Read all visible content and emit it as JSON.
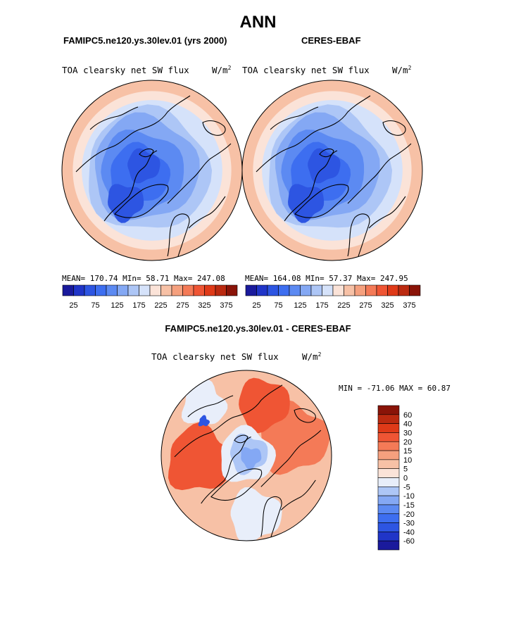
{
  "page_title": "ANN",
  "panels": [
    {
      "header": "FAMIPC5.ne120.ys.30lev.01 (yrs 2000)",
      "variable": "TOA clearsky net SW flux",
      "units_base": "W/m",
      "units_exp": "2",
      "stats": "MEAN= 170.74   MIn=  58.71   Max= 247.08"
    },
    {
      "header": "CERES-EBAF",
      "variable": "TOA clearsky net SW flux",
      "units_base": "W/m",
      "units_exp": "2",
      "stats": "MEAN= 164.08   MIn=  57.37   Max= 247.95"
    }
  ],
  "diff_panel": {
    "header": "FAMIPC5.ne120.ys.30lev.01 - CERES-EBAF",
    "variable": "TOA clearsky net SW flux",
    "units_base": "W/m",
    "units_exp": "2",
    "minmax": "MIN = -71.06 MAX =  60.87"
  },
  "chart_data": [
    {
      "type": "heatmap",
      "projection": "north polar stereographic",
      "title": "FAMIPC5.ne120.ys.30lev.01 (yrs 2000)",
      "variable": "TOA clearsky net SW flux",
      "units": "W/m2",
      "mean": 170.74,
      "min": 58.71,
      "max": 247.08,
      "colorbar_ticks": [
        "25",
        "75",
        "125",
        "175",
        "225",
        "275",
        "325",
        "375"
      ],
      "colorbar_colors": [
        "#1a1a9c",
        "#2035c8",
        "#2d55e2",
        "#3d6ef0",
        "#5c8af2",
        "#84a8f4",
        "#adc6f6",
        "#d5e2fa",
        "#fbe3d8",
        "#f7c1a6",
        "#f5a07e",
        "#f47a57",
        "#ef5534",
        "#df3a18",
        "#bb2a10",
        "#8a1408"
      ]
    },
    {
      "type": "heatmap",
      "projection": "north polar stereographic",
      "title": "CERES-EBAF",
      "variable": "TOA clearsky net SW flux",
      "units": "W/m2",
      "mean": 164.08,
      "min": 57.37,
      "max": 247.95,
      "colorbar_ticks": [
        "25",
        "75",
        "125",
        "175",
        "225",
        "275",
        "325",
        "375"
      ],
      "colorbar_colors": [
        "#1a1a9c",
        "#2035c8",
        "#2d55e2",
        "#3d6ef0",
        "#5c8af2",
        "#84a8f4",
        "#adc6f6",
        "#d5e2fa",
        "#fbe3d8",
        "#f7c1a6",
        "#f5a07e",
        "#f47a57",
        "#ef5534",
        "#df3a18",
        "#bb2a10",
        "#8a1408"
      ]
    },
    {
      "type": "heatmap",
      "projection": "north polar stereographic",
      "title": "FAMIPC5.ne120.ys.30lev.01 - CERES-EBAF",
      "variable": "TOA clearsky net SW flux",
      "units": "W/m2",
      "min": -71.06,
      "max": 60.87,
      "colorbar_ticks": [
        "60",
        "40",
        "30",
        "20",
        "15",
        "10",
        "5",
        "0",
        "-5",
        "-10",
        "-15",
        "-20",
        "-30",
        "-40",
        "-60"
      ],
      "colorbar_colors": [
        "#8a1408",
        "#bb2a10",
        "#df3a18",
        "#ef5534",
        "#f47a57",
        "#f5a07e",
        "#f7c1a6",
        "#fbe3d8",
        "#e8eefa",
        "#adc6f6",
        "#84a8f4",
        "#5c8af2",
        "#3d6ef0",
        "#2d55e2",
        "#2035c8",
        "#1a1a9c"
      ]
    }
  ]
}
